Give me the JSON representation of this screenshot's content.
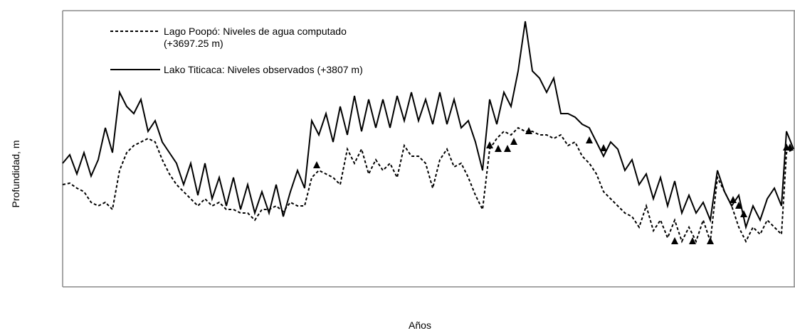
{
  "chart_data": {
    "type": "line",
    "xlabel": "Años",
    "ylabel": "Profundidad, m",
    "xlim": [
      0,
      1029
    ],
    "ylim": [
      0,
      389
    ],
    "x": [
      0,
      10,
      20,
      30,
      40,
      50,
      60,
      70,
      80,
      90,
      100,
      110,
      120,
      130,
      140,
      150,
      160,
      170,
      180,
      190,
      200,
      210,
      220,
      230,
      240,
      250,
      260,
      270,
      280,
      290,
      300,
      310,
      320,
      330,
      340,
      350,
      360,
      370,
      380,
      390,
      400,
      410,
      420,
      430,
      440,
      450,
      460,
      470,
      480,
      490,
      500,
      510,
      520,
      530,
      540,
      550,
      560,
      570,
      580,
      590,
      600,
      610,
      620,
      630,
      640,
      650,
      660,
      670,
      680,
      690,
      700,
      710,
      720,
      730,
      740,
      750,
      760,
      770,
      780,
      790,
      800,
      810,
      820,
      830,
      840,
      850,
      860,
      870,
      880,
      890,
      900,
      910,
      920,
      930,
      940,
      950,
      960,
      970,
      980,
      990,
      1000,
      1010,
      1017,
      1027
    ],
    "series": [
      {
        "name": "Lago Poopó: Niveles de agua computado (+3697.25 m)",
        "color": "#000000",
        "dash": "4,3",
        "values": [
          144,
          146,
          139,
          134,
          119,
          114,
          119,
          109,
          164,
          189,
          199,
          204,
          209,
          204,
          179,
          159,
          144,
          134,
          124,
          114,
          124,
          114,
          119,
          109,
          109,
          104,
          104,
          94,
          109,
          109,
          114,
          106,
          119,
          114,
          114,
          154,
          164,
          159,
          154,
          144,
          194,
          174,
          194,
          159,
          179,
          164,
          174,
          154,
          199,
          184,
          184,
          174,
          139,
          179,
          194,
          169,
          174,
          154,
          129,
          109,
          194,
          209,
          219,
          214,
          224,
          219,
          219,
          214,
          214,
          209,
          214,
          199,
          204,
          184,
          174,
          159,
          134,
          124,
          114,
          104,
          99,
          84,
          114,
          79,
          94,
          69,
          94,
          64,
          84,
          64,
          94,
          64,
          154,
          134,
          114,
          84,
          64,
          84,
          74,
          94,
          84,
          74,
          189,
          194
        ]
      },
      {
        "name": "Lako Titicaca: Niveles observados (+3807 m)",
        "color": "#000000",
        "values": [
          174,
          186,
          159,
          189,
          156,
          179,
          224,
          189,
          274,
          254,
          244,
          264,
          219,
          234,
          204,
          189,
          174,
          144,
          174,
          129,
          174,
          124,
          154,
          114,
          154,
          109,
          144,
          104,
          134,
          104,
          144,
          99,
          134,
          164,
          139,
          234,
          214,
          244,
          204,
          254,
          214,
          269,
          219,
          264,
          224,
          264,
          224,
          269,
          234,
          274,
          234,
          264,
          229,
          274,
          229,
          264,
          224,
          234,
          204,
          164,
          264,
          229,
          274,
          254,
          304,
          374,
          304,
          294,
          274,
          294,
          244,
          244,
          239,
          229,
          224,
          204,
          184,
          204,
          194,
          164,
          179,
          144,
          159,
          124,
          154,
          114,
          149,
          104,
          129,
          104,
          119,
          94,
          164,
          134,
          114,
          129,
          84,
          114,
          94,
          124,
          139,
          114,
          219,
          194
        ]
      }
    ],
    "markers": {
      "color": "#000000",
      "x": [
        357,
        600,
        612,
        625,
        634,
        655,
        740,
        760,
        860,
        885,
        910,
        942,
        950,
        957,
        1017,
        1022
      ],
      "values": [
        171,
        199,
        194,
        194,
        204,
        219,
        206,
        195,
        64,
        64,
        64,
        122,
        114,
        102,
        196,
        196
      ]
    }
  }
}
